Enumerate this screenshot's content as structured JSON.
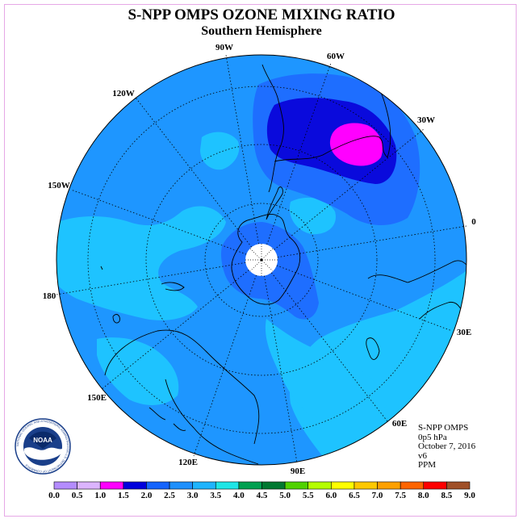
{
  "title": "S-NPP OMPS OZONE MIXING RATIO",
  "subtitle": "Southern Hemisphere",
  "longitude_labels": [
    "90W",
    "60W",
    "120W",
    "30W",
    "150W",
    "0",
    "180",
    "30E",
    "150E",
    "60E",
    "120E",
    "90E"
  ],
  "info": {
    "instrument": "S-NPP OMPS",
    "level": "0p5 hPa",
    "date": "October 7, 2016",
    "version": "v6",
    "units": "PPM"
  },
  "logo": {
    "text": "NOAA",
    "ring_text": "NATIONAL OCEANIC AND ATMOSPHERIC ADMINISTRATION U.S. DEPARTMENT OF COMMERCE"
  },
  "colorbar": {
    "labels": [
      "0.0",
      "0.5",
      "1.0",
      "1.5",
      "2.0",
      "2.5",
      "3.0",
      "3.5",
      "4.0",
      "4.5",
      "5.0",
      "5.5",
      "6.0",
      "6.5",
      "7.0",
      "7.5",
      "8.0",
      "8.5",
      "9.0"
    ],
    "colors": [
      "#b48cff",
      "#dcb4ff",
      "#ff00ff",
      "#0000dc",
      "#1464ff",
      "#1e90ff",
      "#1eb4ff",
      "#1ee6e6",
      "#00a050",
      "#007830",
      "#50d200",
      "#b4ff00",
      "#ffff00",
      "#ffc800",
      "#ffa000",
      "#ff6400",
      "#ff0000",
      "#a05028"
    ]
  },
  "colors": {
    "level_1_5": "#0a0adc",
    "level_2_0": "#1e6eff",
    "level_2_5": "#1e96ff",
    "level_3_0": "#1ec3ff",
    "level_1_0": "#ff00ff"
  }
}
